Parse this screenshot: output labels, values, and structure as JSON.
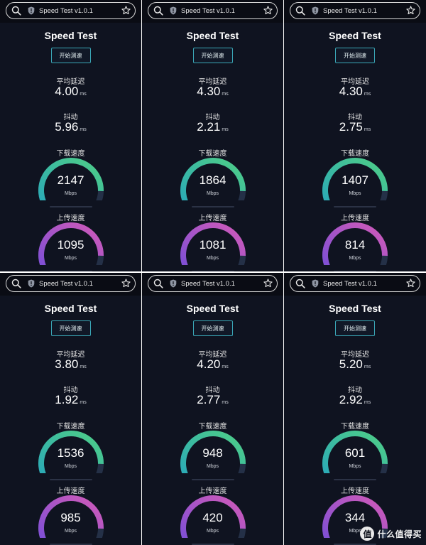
{
  "panels": [
    {
      "url": "Speed Test v1.0.1",
      "title": "Speed Test",
      "start_label": "开始测速",
      "latency_label": "平均延迟",
      "latency": "4.00",
      "latency_unit": "ms",
      "jitter_label": "抖动",
      "jitter": "5.96",
      "jitter_unit": "ms",
      "download_label": "下载速度",
      "download": "2147",
      "download_fill": 0.88,
      "download_unit": "Mbps",
      "upload_label": "上传速度",
      "upload": "1095",
      "upload_fill": 0.88,
      "upload_unit": "Mbps"
    },
    {
      "url": "Speed Test v1.0.1",
      "title": "Speed Test",
      "start_label": "开始测速",
      "latency_label": "平均延迟",
      "latency": "4.30",
      "latency_unit": "ms",
      "jitter_label": "抖动",
      "jitter": "2.21",
      "jitter_unit": "ms",
      "download_label": "下载速度",
      "download": "1864",
      "download_fill": 0.88,
      "download_unit": "Mbps",
      "upload_label": "上传速度",
      "upload": "1081",
      "upload_fill": 0.88,
      "upload_unit": "Mbps"
    },
    {
      "url": "Speed Test v1.0.1",
      "title": "Speed Test",
      "start_label": "开始测速",
      "latency_label": "平均延迟",
      "latency": "4.30",
      "latency_unit": "ms",
      "jitter_label": "抖动",
      "jitter": "2.75",
      "jitter_unit": "ms",
      "download_label": "下载速度",
      "download": "1407",
      "download_fill": 0.88,
      "download_unit": "Mbps",
      "upload_label": "上传速度",
      "upload": "814",
      "upload_fill": 0.88,
      "upload_unit": "Mbps"
    },
    {
      "url": "Speed Test v1.0.1",
      "title": "Speed Test",
      "start_label": "开始测速",
      "latency_label": "平均延迟",
      "latency": "3.80",
      "latency_unit": "ms",
      "jitter_label": "抖动",
      "jitter": "1.92",
      "jitter_unit": "ms",
      "download_label": "下载速度",
      "download": "1536",
      "download_fill": 0.88,
      "download_unit": "Mbps",
      "upload_label": "上传速度",
      "upload": "985",
      "upload_fill": 0.88,
      "upload_unit": "Mbps"
    },
    {
      "url": "Speed Test v1.0.1",
      "title": "Speed Test",
      "start_label": "开始测速",
      "latency_label": "平均延迟",
      "latency": "4.20",
      "latency_unit": "ms",
      "jitter_label": "抖动",
      "jitter": "2.77",
      "jitter_unit": "ms",
      "download_label": "下载速度",
      "download": "948",
      "download_fill": 0.88,
      "download_unit": "Mbps",
      "upload_label": "上传速度",
      "upload": "420",
      "upload_fill": 0.88,
      "upload_unit": "Mbps"
    },
    {
      "url": "Speed Test v1.0.1",
      "title": "Speed Test",
      "start_label": "开始测速",
      "latency_label": "平均延迟",
      "latency": "5.20",
      "latency_unit": "ms",
      "jitter_label": "抖动",
      "jitter": "2.92",
      "jitter_unit": "ms",
      "download_label": "下载速度",
      "download": "601",
      "download_fill": 0.88,
      "download_unit": "Mbps",
      "upload_label": "上传速度",
      "upload": "344",
      "upload_fill": 0.88,
      "upload_unit": "Mbps"
    }
  ],
  "colors": {
    "download_start": "#2aa9b8",
    "download_end": "#4fce86",
    "upload_start": "#7b4fd6",
    "upload_end": "#d25ab8",
    "track": "#243047",
    "button_border": "#3aa7b7"
  },
  "icons": {
    "search": "search-icon",
    "shield": "shield-icon",
    "star": "star-icon"
  },
  "watermark": {
    "badge": "值",
    "text": "什么值得买"
  }
}
